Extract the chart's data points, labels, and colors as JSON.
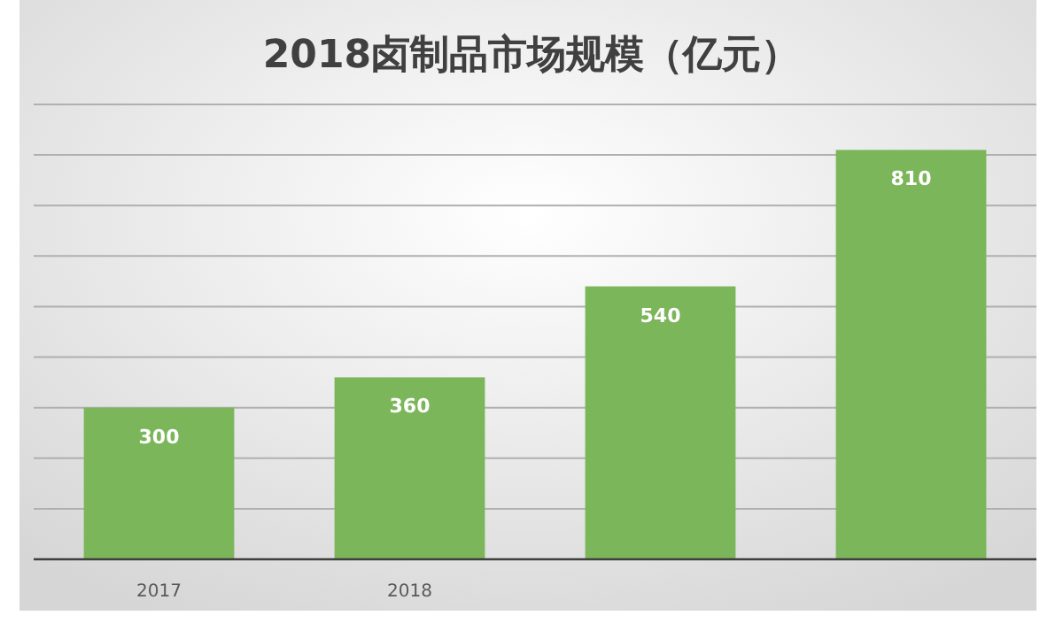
{
  "chart_data": {
    "type": "bar",
    "title": "2018卤制品市场规模（亿元）",
    "categories": [
      "2017",
      "2018",
      null,
      null
    ],
    "values": [
      300,
      360,
      540,
      810
    ],
    "color": "#7cb65a",
    "ylim": [
      0,
      900
    ],
    "yticks": [
      {
        "value": 0,
        "label": null
      },
      {
        "value": 100,
        "label": null
      },
      {
        "value": 200,
        "label": null
      },
      {
        "value": 300,
        "label": null
      },
      {
        "value": 400,
        "label": null
      },
      {
        "value": 500,
        "label": null
      },
      {
        "value": 600,
        "label": null
      },
      {
        "value": 700,
        "label": null
      },
      {
        "value": 800,
        "label": null
      },
      {
        "value": 900,
        "label": null
      }
    ],
    "grid": "y",
    "data_labels": true
  }
}
